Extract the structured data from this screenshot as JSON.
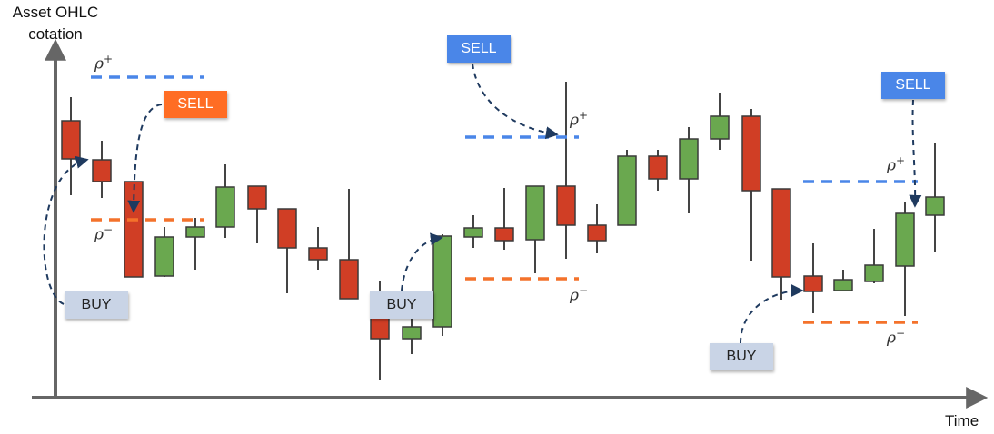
{
  "y_axis_label": "Asset OHLC cotation",
  "x_axis_label": "Time",
  "signals": [
    {
      "label": "BUY"
    },
    {
      "label": "SELL"
    },
    {
      "label": "BUY"
    },
    {
      "label": "SELL"
    },
    {
      "label": "BUY"
    },
    {
      "label": "SELL"
    }
  ],
  "thresholds": [
    {
      "base": "ρ",
      "sup": "+"
    },
    {
      "base": "ρ",
      "sup": "−"
    },
    {
      "base": "ρ",
      "sup": "+"
    },
    {
      "base": "ρ",
      "sup": "−"
    },
    {
      "base": "ρ",
      "sup": "+"
    },
    {
      "base": "ρ",
      "sup": "−"
    }
  ]
}
